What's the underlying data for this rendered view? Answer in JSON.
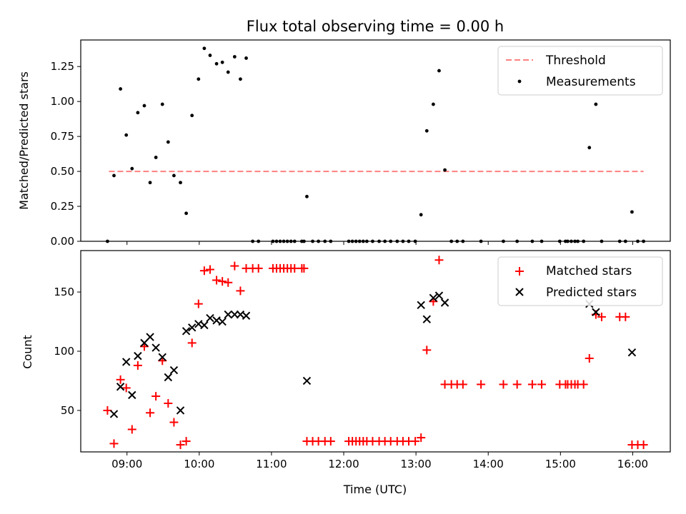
{
  "chart_data": [
    {
      "type": "scatter",
      "title": "Flux total observing time = 0.00 h",
      "xlabel": "",
      "ylabel": "Matched/Predicted stars",
      "xlim": [
        8.36,
        16.52
      ],
      "ylim": [
        0,
        1.44
      ],
      "xticks": [
        9,
        10,
        11,
        12,
        13,
        14,
        15,
        16
      ],
      "xtick_labels": [
        "",
        "",
        "",
        "",
        "",
        "",
        "",
        ""
      ],
      "yticks": [
        0,
        0.25,
        0.5,
        0.75,
        1.0,
        1.25
      ],
      "ytick_labels": [
        "0.00",
        "0.25",
        "0.50",
        "0.75",
        "1.00",
        "1.25"
      ],
      "legend": {
        "placement": "top-right",
        "entries": [
          "Threshold",
          "Measurements"
        ]
      },
      "threshold": {
        "name": "Threshold",
        "x": [
          8.75,
          16.15
        ],
        "y": 0.5,
        "color": "#ff8080",
        "style": "dashed"
      },
      "series": [
        {
          "name": "Measurements",
          "marker": "dot",
          "color": "#000000",
          "x": [
            8.73,
            8.82,
            8.91,
            8.99,
            9.07,
            9.15,
            9.24,
            9.32,
            9.4,
            9.49,
            9.57,
            9.65,
            9.74,
            9.82,
            9.9,
            9.99,
            10.07,
            10.15,
            10.24,
            10.32,
            10.4,
            10.49,
            10.57,
            10.65,
            10.74,
            10.82,
            11.02,
            11.07,
            11.12,
            11.17,
            11.22,
            11.27,
            11.32,
            11.42,
            11.45,
            11.49,
            11.57,
            11.65,
            11.74,
            11.82,
            12.07,
            12.12,
            12.17,
            12.22,
            12.27,
            12.32,
            12.4,
            12.49,
            12.57,
            12.65,
            12.74,
            12.82,
            12.9,
            12.99,
            13.07,
            13.15,
            13.24,
            13.32,
            13.4,
            13.49,
            13.57,
            13.65,
            13.9,
            14.21,
            14.4,
            14.61,
            14.74,
            14.99,
            15.07,
            15.1,
            15.15,
            15.2,
            15.24,
            15.32,
            15.4,
            15.49,
            15.57,
            15.82,
            15.9,
            15.99,
            16.07,
            16.15
          ],
          "y": [
            0.0,
            0.47,
            1.09,
            0.76,
            0.52,
            0.92,
            0.97,
            0.42,
            0.6,
            0.98,
            0.71,
            0.47,
            0.42,
            0.2,
            0.9,
            1.16,
            1.38,
            1.33,
            1.27,
            1.28,
            1.21,
            1.32,
            1.16,
            1.31,
            0.0,
            0.0,
            0.0,
            0.0,
            0.0,
            0.0,
            0.0,
            0.0,
            0.0,
            0.0,
            0.0,
            0.32,
            0.0,
            0.0,
            0.0,
            0.0,
            0.0,
            0.0,
            0.0,
            0.0,
            0.0,
            0.0,
            0.0,
            0.0,
            0.0,
            0.0,
            0.0,
            0.0,
            0.0,
            0.0,
            0.19,
            0.79,
            0.98,
            1.22,
            0.51,
            0.0,
            0.0,
            0.0,
            0.0,
            0.0,
            0.0,
            0.0,
            0.0,
            0.0,
            0.0,
            0.0,
            0.0,
            0.0,
            0.0,
            0.0,
            0.67,
            0.98,
            0.0,
            0.0,
            0.0,
            0.21,
            0.0,
            0.0
          ]
        }
      ]
    },
    {
      "type": "scatter",
      "title": "",
      "xlabel": "Time (UTC)",
      "ylabel": "Count",
      "xlim": [
        8.36,
        16.52
      ],
      "ylim": [
        15,
        185
      ],
      "xticks": [
        9,
        10,
        11,
        12,
        13,
        14,
        15,
        16
      ],
      "xtick_labels": [
        "09:00",
        "10:00",
        "11:00",
        "12:00",
        "13:00",
        "14:00",
        "15:00",
        "16:00"
      ],
      "yticks": [
        50,
        100,
        150
      ],
      "ytick_labels": [
        "50",
        "100",
        "150"
      ],
      "legend": {
        "placement": "top-right",
        "entries": [
          "Matched stars",
          "Predicted stars"
        ]
      },
      "series": [
        {
          "name": "Matched stars",
          "marker": "plus",
          "color": "#ff0000",
          "x": [
            8.73,
            8.82,
            8.91,
            8.99,
            9.07,
            9.15,
            9.24,
            9.32,
            9.4,
            9.49,
            9.57,
            9.65,
            9.74,
            9.82,
            9.9,
            9.99,
            10.07,
            10.15,
            10.24,
            10.32,
            10.4,
            10.49,
            10.57,
            10.65,
            10.74,
            10.82,
            11.02,
            11.07,
            11.12,
            11.17,
            11.22,
            11.27,
            11.32,
            11.42,
            11.45,
            11.49,
            11.57,
            11.65,
            11.74,
            11.82,
            12.07,
            12.12,
            12.17,
            12.22,
            12.27,
            12.32,
            12.4,
            12.49,
            12.57,
            12.65,
            12.74,
            12.82,
            12.9,
            12.99,
            13.07,
            13.15,
            13.24,
            13.32,
            13.4,
            13.49,
            13.57,
            13.65,
            13.9,
            14.21,
            14.4,
            14.61,
            14.74,
            14.99,
            15.07,
            15.1,
            15.15,
            15.2,
            15.24,
            15.32,
            15.4,
            15.49,
            15.57,
            15.82,
            15.9,
            15.99,
            16.07,
            16.15
          ],
          "y": [
            50,
            22,
            76,
            69,
            34,
            88,
            104,
            48,
            62,
            92,
            56,
            40,
            21,
            24,
            107,
            140,
            168,
            169,
            160,
            159,
            158,
            172,
            151,
            170,
            170,
            170,
            170,
            170,
            170,
            170,
            170,
            170,
            170,
            170,
            170,
            24,
            24,
            24,
            24,
            24,
            24,
            24,
            24,
            24,
            24,
            24,
            24,
            24,
            24,
            24,
            24,
            24,
            24,
            24,
            27,
            101,
            142,
            177,
            72,
            72,
            72,
            72,
            72,
            72,
            72,
            72,
            72,
            72,
            72,
            72,
            72,
            72,
            72,
            72,
            94,
            131,
            129,
            129,
            129,
            21,
            21,
            21
          ]
        },
        {
          "name": "Predicted stars",
          "marker": "x",
          "color": "#000000",
          "x": [
            8.82,
            8.91,
            8.99,
            9.07,
            9.15,
            9.24,
            9.32,
            9.4,
            9.49,
            9.57,
            9.65,
            9.74,
            9.82,
            9.9,
            9.99,
            10.07,
            10.15,
            10.24,
            10.32,
            10.4,
            10.49,
            10.57,
            10.65,
            11.49,
            13.07,
            13.15,
            13.24,
            13.32,
            13.4,
            15.4,
            15.49,
            15.99
          ],
          "y": [
            47,
            70,
            91,
            63,
            96,
            107,
            112,
            103,
            95,
            78,
            84,
            50,
            117,
            120,
            123,
            122,
            128,
            126,
            125,
            131,
            131,
            131,
            130,
            75,
            139,
            127,
            145,
            147,
            141,
            140,
            133,
            99
          ]
        }
      ]
    }
  ]
}
